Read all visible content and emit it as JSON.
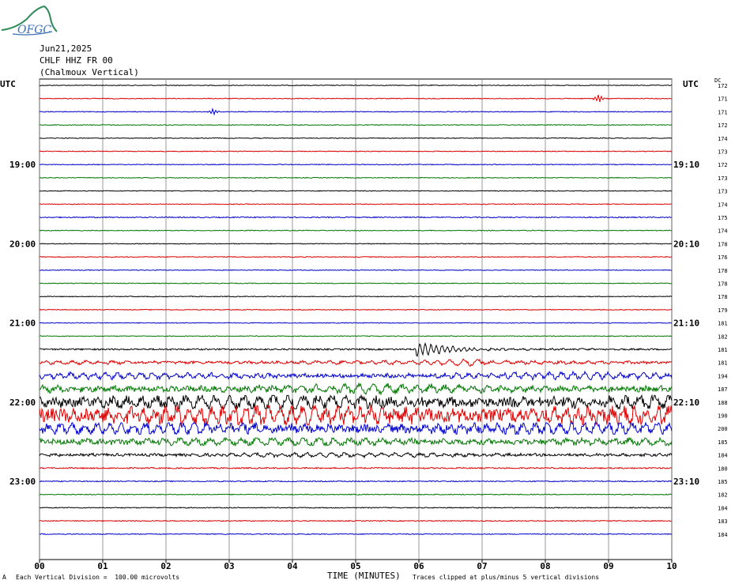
{
  "logo": {
    "text": "OFGC"
  },
  "header": {
    "date": "Jun21,2025",
    "station": "CHLF HHZ FR 00",
    "location": "(Chalmoux Vertical)"
  },
  "left_utc_label": "UTC",
  "right_utc_label": "UTC",
  "dc_label": "DC",
  "footer": {
    "scale_marker": "A",
    "scale_text": "Each Vertical Division =  100.00 microvolts",
    "clip_text": "Traces clipped at plus/minus 5 vertical divisions"
  },
  "colors": {
    "black": "#000000",
    "red": "#dd0000",
    "blue": "#0000cc",
    "green": "#007700",
    "grid": "#808080"
  },
  "chart_data": {
    "type": "line",
    "xlabel": "TIME (MINUTES)",
    "x_ticks": [
      "00",
      "01",
      "02",
      "03",
      "04",
      "05",
      "06",
      "07",
      "08",
      "09",
      "10"
    ],
    "xlim": [
      0,
      10
    ],
    "trace_color_cycle": [
      "black",
      "red",
      "blue",
      "green"
    ],
    "left_time_labels": [
      {
        "row": 6,
        "text": "19:00"
      },
      {
        "row": 12,
        "text": "20:00"
      },
      {
        "row": 18,
        "text": "21:00"
      },
      {
        "row": 24,
        "text": "22:00"
      },
      {
        "row": 30,
        "text": "23:00"
      }
    ],
    "right_time_labels": [
      {
        "row": 6,
        "text": "19:10"
      },
      {
        "row": 12,
        "text": "20:10"
      },
      {
        "row": 18,
        "text": "21:10"
      },
      {
        "row": 24,
        "text": "22:10"
      },
      {
        "row": 30,
        "text": "23:10"
      }
    ],
    "dc_values": [
      172,
      171,
      171,
      172,
      174,
      173,
      172,
      173,
      173,
      174,
      175,
      174,
      178,
      176,
      178,
      178,
      178,
      179,
      181,
      182,
      181,
      181,
      194,
      187,
      188,
      190,
      200,
      185,
      184,
      180,
      185,
      182,
      184,
      183,
      184
    ],
    "events": [
      {
        "row": 1,
        "minute": 8.85,
        "type": "local burst"
      },
      {
        "row": 2,
        "minute": 2.75,
        "type": "spike"
      },
      {
        "row": 20,
        "minute": 5.95,
        "type": "earthquake onset"
      }
    ],
    "amplitude_by_row": [
      0.6,
      0.6,
      0.6,
      0.6,
      0.6,
      0.6,
      0.6,
      0.6,
      0.6,
      0.6,
      0.8,
      0.6,
      0.6,
      0.6,
      0.6,
      0.6,
      0.6,
      0.6,
      0.6,
      0.6,
      1.2,
      2.0,
      3.0,
      4.0,
      7.0,
      10.0,
      6.0,
      4.0,
      2.0,
      1.0,
      0.8,
      0.7,
      0.7,
      0.7,
      0.7
    ]
  }
}
